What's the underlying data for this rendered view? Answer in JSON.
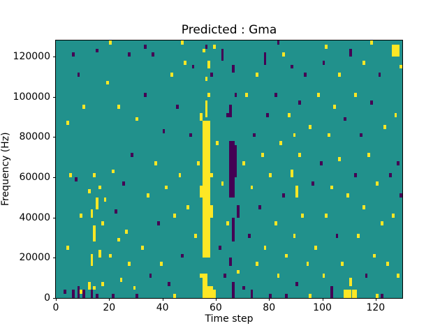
{
  "chart_data": {
    "type": "heatmap",
    "title": "Predicted : Gma",
    "xlabel": "Time step",
    "ylabel": "Frequency (Hz)",
    "xlim": [
      0,
      130
    ],
    "ylim": [
      0,
      128000
    ],
    "x_tick_values": [
      0,
      20,
      40,
      60,
      80,
      100,
      120
    ],
    "x_tick_labels": [
      "0",
      "20",
      "40",
      "60",
      "80",
      "100",
      "120"
    ],
    "y_tick_values": [
      0,
      20000,
      40000,
      60000,
      80000,
      100000,
      120000
    ],
    "y_tick_labels": [
      "0",
      "20000",
      "40000",
      "60000",
      "80000",
      "100000",
      "120000"
    ],
    "grid": {
      "n_time": 130,
      "n_freq": 64,
      "freq_bin_hz": 2000
    },
    "background_class": "teal",
    "colors": {
      "teal": "#21918c",
      "yellow": "#fde725",
      "purple": "#440154",
      "figure": "#ffffff",
      "text": "#000000"
    },
    "legend": "none",
    "cells": [
      {
        "x": 3,
        "y": 1,
        "c": "P"
      },
      {
        "x": 4,
        "y": 12,
        "c": "Y"
      },
      {
        "x": 4,
        "y": 43,
        "c": "Y"
      },
      {
        "x": 5,
        "y": 30,
        "c": "Y"
      },
      {
        "x": 6,
        "y": 0,
        "h": 2,
        "c": "P"
      },
      {
        "x": 6,
        "y": 60,
        "c": "P"
      },
      {
        "x": 7,
        "y": 29,
        "c": "P"
      },
      {
        "x": 8,
        "y": 0,
        "h": 3,
        "c": "P"
      },
      {
        "x": 8,
        "y": 55,
        "c": "P"
      },
      {
        "x": 9,
        "y": 1,
        "c": "Y"
      },
      {
        "x": 9,
        "y": 20,
        "c": "Y"
      },
      {
        "x": 10,
        "y": 0,
        "h": 2,
        "c": "P"
      },
      {
        "x": 10,
        "y": 47,
        "c": "Y"
      },
      {
        "x": 12,
        "y": 2,
        "h": 2,
        "c": "Y"
      },
      {
        "x": 12,
        "y": 26,
        "c": "Y"
      },
      {
        "x": 13,
        "y": 0,
        "h": 2,
        "c": "P"
      },
      {
        "x": 13,
        "y": 8,
        "h": 3,
        "c": "Y"
      },
      {
        "x": 13,
        "y": 20,
        "h": 2,
        "c": "Y"
      },
      {
        "x": 14,
        "y": 2,
        "c": "Y"
      },
      {
        "x": 14,
        "y": 14,
        "h": 4,
        "c": "Y"
      },
      {
        "x": 14,
        "y": 30,
        "c": "Y"
      },
      {
        "x": 15,
        "y": 0,
        "c": "P"
      },
      {
        "x": 15,
        "y": 22,
        "h": 3,
        "c": "Y"
      },
      {
        "x": 15,
        "y": 61,
        "c": "P"
      },
      {
        "x": 16,
        "y": 10,
        "h": 2,
        "c": "Y"
      },
      {
        "x": 16,
        "y": 27,
        "c": "Y"
      },
      {
        "x": 17,
        "y": 3,
        "c": "Y"
      },
      {
        "x": 17,
        "y": 18,
        "c": "Y"
      },
      {
        "x": 18,
        "y": 24,
        "c": "Y"
      },
      {
        "x": 19,
        "y": 53,
        "c": "Y"
      },
      {
        "x": 20,
        "y": 10,
        "c": "Y"
      },
      {
        "x": 20,
        "y": 63,
        "c": "Y"
      },
      {
        "x": 21,
        "y": 0,
        "c": "P"
      },
      {
        "x": 21,
        "y": 31,
        "c": "Y"
      },
      {
        "x": 22,
        "y": 21,
        "c": "P"
      },
      {
        "x": 23,
        "y": 14,
        "c": "Y"
      },
      {
        "x": 23,
        "y": 47,
        "c": "Y"
      },
      {
        "x": 24,
        "y": 4,
        "c": "Y"
      },
      {
        "x": 25,
        "y": 28,
        "c": "P"
      },
      {
        "x": 26,
        "y": 16,
        "c": "Y"
      },
      {
        "x": 27,
        "y": 8,
        "c": "Y"
      },
      {
        "x": 27,
        "y": 60,
        "c": "P"
      },
      {
        "x": 28,
        "y": 35,
        "c": "P"
      },
      {
        "x": 29,
        "y": 2,
        "c": "Y"
      },
      {
        "x": 30,
        "y": 0,
        "c": "P"
      },
      {
        "x": 30,
        "y": 44,
        "c": "Y"
      },
      {
        "x": 32,
        "y": 12,
        "c": "Y"
      },
      {
        "x": 33,
        "y": 50,
        "c": "P"
      },
      {
        "x": 33,
        "y": 62,
        "c": "P"
      },
      {
        "x": 34,
        "y": 25,
        "c": "Y"
      },
      {
        "x": 35,
        "y": 5,
        "c": "P"
      },
      {
        "x": 36,
        "y": 60,
        "c": "P"
      },
      {
        "x": 37,
        "y": 33,
        "c": "Y"
      },
      {
        "x": 38,
        "y": 18,
        "c": "P"
      },
      {
        "x": 39,
        "y": 8,
        "c": "Y"
      },
      {
        "x": 40,
        "y": 41,
        "c": "P"
      },
      {
        "x": 41,
        "y": 27,
        "c": "Y"
      },
      {
        "x": 42,
        "y": 3,
        "c": "P"
      },
      {
        "x": 43,
        "y": 55,
        "c": "Y"
      },
      {
        "x": 44,
        "y": 0,
        "c": "Y"
      },
      {
        "x": 44,
        "y": 20,
        "c": "Y"
      },
      {
        "x": 45,
        "y": 47,
        "c": "P"
      },
      {
        "x": 46,
        "y": 30,
        "c": "Y"
      },
      {
        "x": 47,
        "y": 10,
        "c": "P"
      },
      {
        "x": 47,
        "y": 63,
        "c": "Y"
      },
      {
        "x": 48,
        "y": 58,
        "c": "Y"
      },
      {
        "x": 49,
        "y": 22,
        "c": "Y"
      },
      {
        "x": 50,
        "y": 40,
        "c": "P"
      },
      {
        "x": 51,
        "y": 57,
        "c": "P"
      },
      {
        "x": 52,
        "y": 15,
        "c": "Y"
      },
      {
        "x": 53,
        "y": 33,
        "c": "Y"
      },
      {
        "x": 54,
        "y": 5,
        "c": "Y"
      },
      {
        "x": 54,
        "y": 25,
        "h": 3,
        "c": "Y"
      },
      {
        "x": 54,
        "y": 44,
        "h": 2,
        "c": "Y"
      },
      {
        "x": 55,
        "y": 0,
        "w": 2,
        "h": 6,
        "c": "Y"
      },
      {
        "x": 55,
        "y": 10,
        "w": 3,
        "h": 34,
        "c": "Y"
      },
      {
        "x": 55,
        "y": 61,
        "c": "Y"
      },
      {
        "x": 56,
        "y": 45,
        "h": 4,
        "c": "Y"
      },
      {
        "x": 56,
        "y": 54,
        "c": "Y"
      },
      {
        "x": 56,
        "y": 62,
        "c": "P"
      },
      {
        "x": 57,
        "y": 0,
        "w": 2,
        "h": 3,
        "c": "Y"
      },
      {
        "x": 57,
        "y": 50,
        "c": "Y"
      },
      {
        "x": 57,
        "y": 57,
        "h": 2,
        "c": "Y"
      },
      {
        "x": 58,
        "y": 20,
        "h": 3,
        "c": "Y"
      },
      {
        "x": 58,
        "y": 30,
        "c": "Y"
      },
      {
        "x": 58,
        "y": 55,
        "c": "P"
      },
      {
        "x": 59,
        "y": 0,
        "h": 2,
        "c": "Y"
      },
      {
        "x": 59,
        "y": 62,
        "c": "Y"
      },
      {
        "x": 60,
        "y": 38,
        "c": "Y"
      },
      {
        "x": 61,
        "y": 12,
        "c": "P"
      },
      {
        "x": 62,
        "y": 28,
        "c": "Y"
      },
      {
        "x": 62,
        "y": 59,
        "h": 3,
        "c": "P"
      },
      {
        "x": 63,
        "y": 5,
        "c": "P"
      },
      {
        "x": 64,
        "y": 18,
        "c": "Y"
      },
      {
        "x": 64,
        "y": 45,
        "c": "P"
      },
      {
        "x": 65,
        "y": 8,
        "h": 2,
        "c": "P"
      },
      {
        "x": 65,
        "y": 25,
        "w": 2,
        "h": 14,
        "c": "P"
      },
      {
        "x": 65,
        "y": 45,
        "h": 3,
        "c": "P"
      },
      {
        "x": 66,
        "y": 0,
        "h": 4,
        "c": "P"
      },
      {
        "x": 66,
        "y": 14,
        "h": 6,
        "c": "P"
      },
      {
        "x": 66,
        "y": 56,
        "h": 2,
        "c": "P"
      },
      {
        "x": 67,
        "y": 30,
        "h": 8,
        "c": "P"
      },
      {
        "x": 67,
        "y": 50,
        "c": "P"
      },
      {
        "x": 68,
        "y": 6,
        "c": "Y"
      },
      {
        "x": 68,
        "y": 20,
        "h": 3,
        "c": "P"
      },
      {
        "x": 70,
        "y": 2,
        "c": "P"
      },
      {
        "x": 70,
        "y": 33,
        "c": "Y"
      },
      {
        "x": 71,
        "y": 50,
        "c": "Y"
      },
      {
        "x": 72,
        "y": 15,
        "c": "P"
      },
      {
        "x": 73,
        "y": 0,
        "h": 2,
        "c": "P"
      },
      {
        "x": 73,
        "y": 27,
        "c": "Y"
      },
      {
        "x": 74,
        "y": 40,
        "c": "P"
      },
      {
        "x": 75,
        "y": 8,
        "c": "Y"
      },
      {
        "x": 75,
        "y": 55,
        "c": "Y"
      },
      {
        "x": 76,
        "y": 22,
        "c": "P"
      },
      {
        "x": 77,
        "y": 35,
        "c": "Y"
      },
      {
        "x": 78,
        "y": 12,
        "c": "Y"
      },
      {
        "x": 78,
        "y": 58,
        "h": 3,
        "c": "P"
      },
      {
        "x": 79,
        "y": 45,
        "c": "P"
      },
      {
        "x": 80,
        "y": 0,
        "c": "P"
      },
      {
        "x": 80,
        "y": 30,
        "c": "Y"
      },
      {
        "x": 82,
        "y": 18,
        "c": "Y"
      },
      {
        "x": 82,
        "y": 50,
        "c": "P"
      },
      {
        "x": 83,
        "y": 5,
        "c": "Y"
      },
      {
        "x": 83,
        "y": 63,
        "c": "P"
      },
      {
        "x": 84,
        "y": 38,
        "c": "Y"
      },
      {
        "x": 85,
        "y": 25,
        "c": "P"
      },
      {
        "x": 85,
        "y": 60,
        "c": "Y"
      },
      {
        "x": 86,
        "y": 0,
        "c": "P"
      },
      {
        "x": 86,
        "y": 10,
        "c": "Y"
      },
      {
        "x": 87,
        "y": 45,
        "c": "Y"
      },
      {
        "x": 88,
        "y": 30,
        "h": 2,
        "c": "Y"
      },
      {
        "x": 88,
        "y": 57,
        "c": "P"
      },
      {
        "x": 89,
        "y": 15,
        "c": "Y"
      },
      {
        "x": 89,
        "y": 40,
        "c": "Y"
      },
      {
        "x": 90,
        "y": 3,
        "c": "P"
      },
      {
        "x": 90,
        "y": 25,
        "h": 3,
        "c": "Y"
      },
      {
        "x": 91,
        "y": 35,
        "c": "Y"
      },
      {
        "x": 91,
        "y": 48,
        "c": "P"
      },
      {
        "x": 92,
        "y": 20,
        "c": "Y"
      },
      {
        "x": 93,
        "y": 55,
        "c": "P"
      },
      {
        "x": 94,
        "y": 8,
        "c": "Y"
      },
      {
        "x": 95,
        "y": 0,
        "c": "Y"
      },
      {
        "x": 95,
        "y": 42,
        "c": "Y"
      },
      {
        "x": 96,
        "y": 28,
        "c": "P"
      },
      {
        "x": 97,
        "y": 12,
        "c": "Y"
      },
      {
        "x": 98,
        "y": 50,
        "c": "Y"
      },
      {
        "x": 99,
        "y": 33,
        "c": "P"
      },
      {
        "x": 100,
        "y": 5,
        "c": "Y"
      },
      {
        "x": 100,
        "y": 58,
        "c": "P"
      },
      {
        "x": 101,
        "y": 20,
        "c": "Y"
      },
      {
        "x": 101,
        "y": 62,
        "c": "Y"
      },
      {
        "x": 102,
        "y": 40,
        "c": "Y"
      },
      {
        "x": 103,
        "y": 0,
        "h": 3,
        "c": "P"
      },
      {
        "x": 103,
        "y": 27,
        "c": "Y"
      },
      {
        "x": 104,
        "y": 47,
        "c": "Y"
      },
      {
        "x": 105,
        "y": 15,
        "c": "P"
      },
      {
        "x": 106,
        "y": 34,
        "c": "Y"
      },
      {
        "x": 106,
        "y": 55,
        "c": "Y"
      },
      {
        "x": 107,
        "y": 8,
        "c": "Y"
      },
      {
        "x": 108,
        "y": 0,
        "w": 3,
        "h": 2,
        "c": "Y"
      },
      {
        "x": 108,
        "y": 44,
        "c": "P"
      },
      {
        "x": 109,
        "y": 25,
        "c": "Y"
      },
      {
        "x": 110,
        "y": 3,
        "h": 2,
        "c": "Y"
      },
      {
        "x": 110,
        "y": 60,
        "h": 2,
        "c": "P"
      },
      {
        "x": 111,
        "y": 0,
        "w": 2,
        "h": 2,
        "c": "Y"
      },
      {
        "x": 112,
        "y": 30,
        "c": "P"
      },
      {
        "x": 112,
        "y": 50,
        "c": "Y"
      },
      {
        "x": 113,
        "y": 15,
        "c": "Y"
      },
      {
        "x": 114,
        "y": 40,
        "c": "P"
      },
      {
        "x": 115,
        "y": 22,
        "c": "Y"
      },
      {
        "x": 115,
        "y": 58,
        "c": "Y"
      },
      {
        "x": 116,
        "y": 5,
        "c": "P"
      },
      {
        "x": 117,
        "y": 35,
        "c": "Y"
      },
      {
        "x": 118,
        "y": 48,
        "c": "P"
      },
      {
        "x": 118,
        "y": 63,
        "c": "Y"
      },
      {
        "x": 119,
        "y": 10,
        "c": "Y"
      },
      {
        "x": 120,
        "y": 0,
        "c": "Y"
      },
      {
        "x": 120,
        "y": 28,
        "c": "Y"
      },
      {
        "x": 121,
        "y": 55,
        "c": "P"
      },
      {
        "x": 122,
        "y": 0,
        "c": "P"
      },
      {
        "x": 122,
        "y": 18,
        "c": "Y"
      },
      {
        "x": 123,
        "y": 42,
        "c": "Y"
      },
      {
        "x": 124,
        "y": 8,
        "c": "Y"
      },
      {
        "x": 125,
        "y": 30,
        "c": "P"
      },
      {
        "x": 126,
        "y": 20,
        "c": "Y"
      },
      {
        "x": 126,
        "y": 60,
        "w": 3,
        "h": 3,
        "c": "Y"
      },
      {
        "x": 127,
        "y": 45,
        "c": "Y"
      },
      {
        "x": 128,
        "y": 5,
        "c": "Y"
      },
      {
        "x": 128,
        "y": 33,
        "c": "P"
      },
      {
        "x": 129,
        "y": 25,
        "c": "P"
      },
      {
        "x": 129,
        "y": 57,
        "c": "Y"
      }
    ]
  }
}
